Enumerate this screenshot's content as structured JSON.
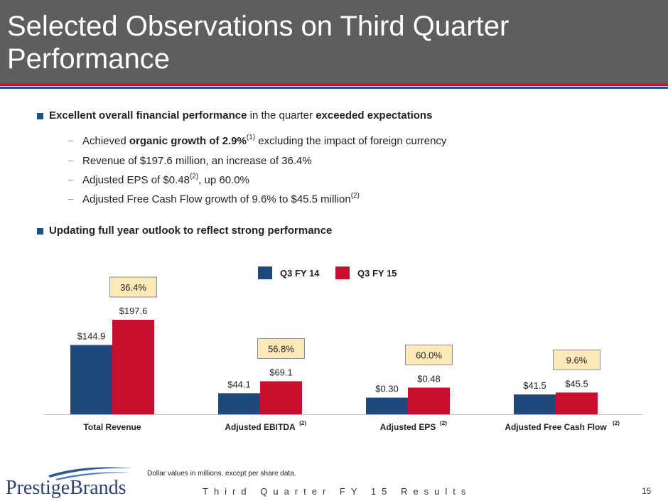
{
  "slide": {
    "title": "Selected Observations on Third Quarter Performance"
  },
  "bullets": {
    "b1": {
      "bold1": "Excellent overall financial performance",
      "normal1": " in the quarter ",
      "bold2": "exceeded expectations"
    },
    "subs": {
      "s1": {
        "pre": "Achieved ",
        "bold": "organic growth of 2.9%",
        "sup": "(1)",
        "post": " excluding the impact of foreign currency"
      },
      "s2": {
        "text": "Revenue of $197.6 million, an increase of 36.4%"
      },
      "s3": {
        "pre": "Adjusted EPS of $0.48",
        "sup": "(2)",
        "post": ", up 60.0%"
      },
      "s4": {
        "pre": "Adjusted Free Cash Flow growth of 9.6% to $45.5 million",
        "sup": "(2)"
      }
    },
    "b2": {
      "bold": "Updating full year outlook to reflect strong performance"
    }
  },
  "chart_data": {
    "type": "bar",
    "title": "",
    "xlabel": "",
    "ylabel": "",
    "categories": [
      "Total Revenue",
      "Adjusted EBITDA",
      "Adjusted EPS",
      "Adjusted Free Cash Flow"
    ],
    "category_superscripts": [
      "",
      "(2)",
      "(2)",
      "(2)"
    ],
    "series": [
      {
        "name": "Q3 FY 14",
        "values": [
          144.9,
          44.1,
          0.3,
          41.5
        ],
        "labels": [
          "$144.9",
          "$44.1",
          "$0.30",
          "$41.5"
        ],
        "color": "#1f497d"
      },
      {
        "name": "Q3 FY 15",
        "values": [
          197.6,
          69.1,
          0.48,
          45.5
        ],
        "labels": [
          "$197.6",
          "$69.1",
          "$0.48",
          "$45.5"
        ],
        "color": "#c8102e"
      }
    ],
    "growth_labels": [
      "36.4%",
      "56.8%",
      "60.0%",
      "9.6%"
    ],
    "ylim_per_category": [
      [
        0,
        197.6
      ],
      [
        0,
        197.6
      ],
      [
        0,
        1.7
      ],
      [
        0,
        197.6
      ]
    ],
    "legend_position": "top-center",
    "grid": false
  },
  "footer": {
    "note": "Dollar values in millions, except per share data.",
    "brand": "PrestigeBrands",
    "text": "Third Quarter FY 15 Results",
    "page": "15"
  },
  "colors": {
    "title_bg": "#5e5e5e",
    "accent_red": "#c8102e",
    "accent_blue": "#1f4e8c",
    "growth_box_bg": "#fde9b8"
  }
}
